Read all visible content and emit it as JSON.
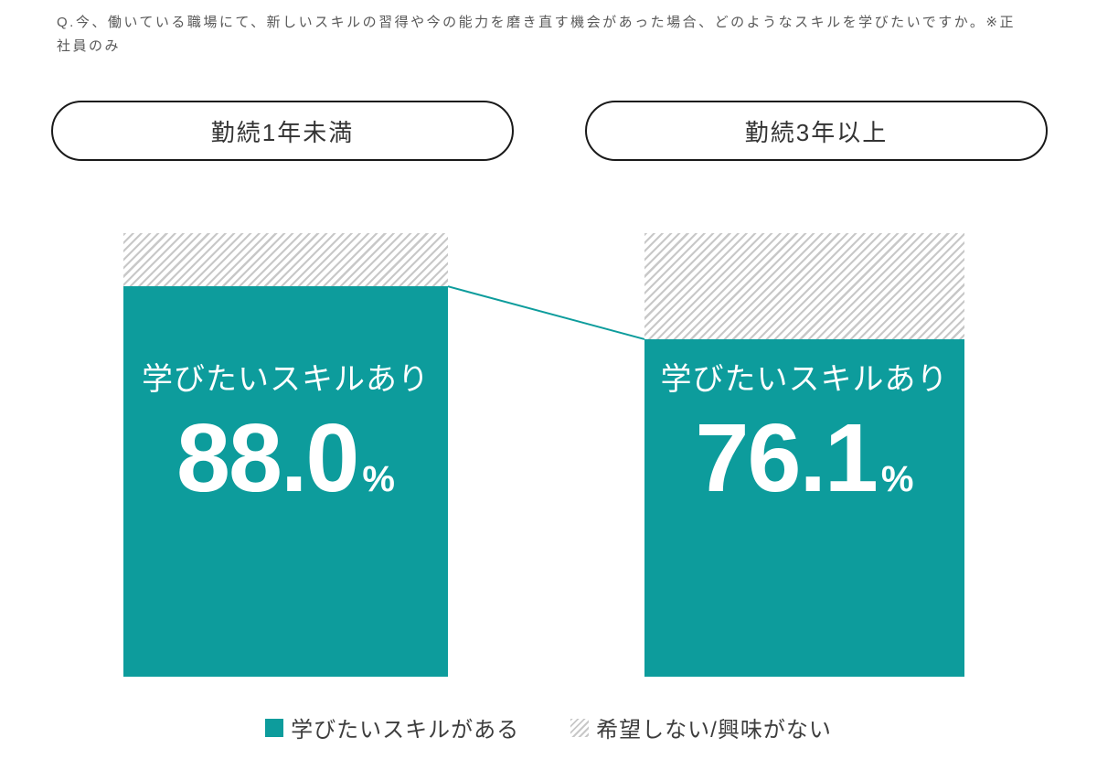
{
  "question": "Q.今、働いている職場にて、新しいスキルの習得や今の能力を磨き直す機会があった場合、どのようなスキルを学びたいですか。※正社員のみ",
  "pills": [
    {
      "label": "勤続1年未満"
    },
    {
      "label": "勤続3年以上"
    }
  ],
  "bars": [
    {
      "group": "勤続1年未満",
      "label": "学びたいスキルあり",
      "value_text": "88.0",
      "unit": "%"
    },
    {
      "group": "勤続3年以上",
      "label": "学びたいスキルあり",
      "value_text": "76.1",
      "unit": "%"
    }
  ],
  "legend": [
    {
      "label": "学びたいスキルがある",
      "swatch": "solid-teal"
    },
    {
      "label": "希望しない/興味がない",
      "swatch": "hatched-gray"
    }
  ],
  "colors": {
    "teal": "#0d9c9c",
    "hatch_gray": "#c8c8c8",
    "text_gray": "#595959",
    "pill_border": "#1a1a1a"
  },
  "chart_data": {
    "type": "bar",
    "stacked": true,
    "categories": [
      "勤続1年未満",
      "勤続3年以上"
    ],
    "series": [
      {
        "name": "学びたいスキルがある",
        "values": [
          88.0,
          76.1
        ]
      },
      {
        "name": "希望しない/興味がない",
        "values": [
          12.0,
          23.9
        ]
      }
    ],
    "title": "Q.今、働いている職場にて、新しいスキルの習得や今の能力を磨き直す機会があった場合、どのようなスキルを学びたいですか。※正社員のみ",
    "xlabel": "",
    "ylabel": "",
    "ylim": [
      0,
      100
    ],
    "unit": "%",
    "grid": false,
    "legend_position": "bottom",
    "annotations": [
      "学びたいスキルあり 88.0%",
      "学びたいスキルあり 76.1%"
    ]
  }
}
